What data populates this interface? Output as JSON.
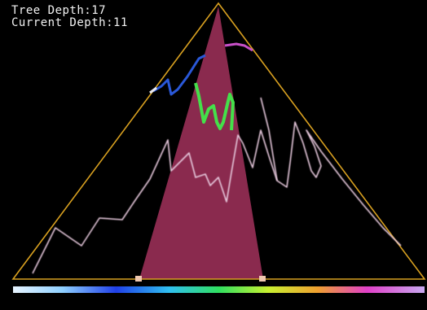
{
  "hud": {
    "tree_depth_label": "Tree Depth:",
    "tree_depth_value": "17",
    "current_depth_label": "Current Depth:",
    "current_depth_value": "11"
  },
  "colors": {
    "background": "#000000",
    "frame": "#d8a020",
    "cone": "#8a2a4e",
    "outline": "#e6c8dc",
    "highlight": "#44e04a",
    "segment_blue": "#2a58d8",
    "segment_magenta": "#c850c8"
  }
}
